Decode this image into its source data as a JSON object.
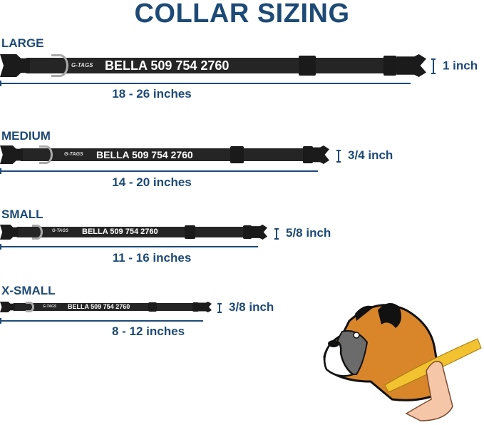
{
  "title": "COLLAR SIZING",
  "sizes": [
    {
      "name": "LARGE",
      "range": "18 - 26 inches",
      "width": "1 inch",
      "collar_text": "BELLA 509 754 2760",
      "logo": "G-TAGS"
    },
    {
      "name": "MEDIUM",
      "range": "14 - 20 inches",
      "width": "3/4 inch",
      "collar_text": "BELLA 509 754 2760",
      "logo": "G-TAGS"
    },
    {
      "name": "SMALL",
      "range": "11 - 16 inches",
      "width": "5/8 inch",
      "collar_text": "BELLA 509 754 2760",
      "logo": "G-TAGS"
    },
    {
      "name": "X-SMALL",
      "range": "8 - 12 inches",
      "width": "3/8 inch",
      "collar_text": "BELLA 509 754 2760",
      "logo": "G-TAGS"
    }
  ],
  "colors": {
    "title": "#1d4a76",
    "collar": "#252525",
    "tape": "#f2c230"
  },
  "illustration": "boxer-dog-with-measuring-tape"
}
